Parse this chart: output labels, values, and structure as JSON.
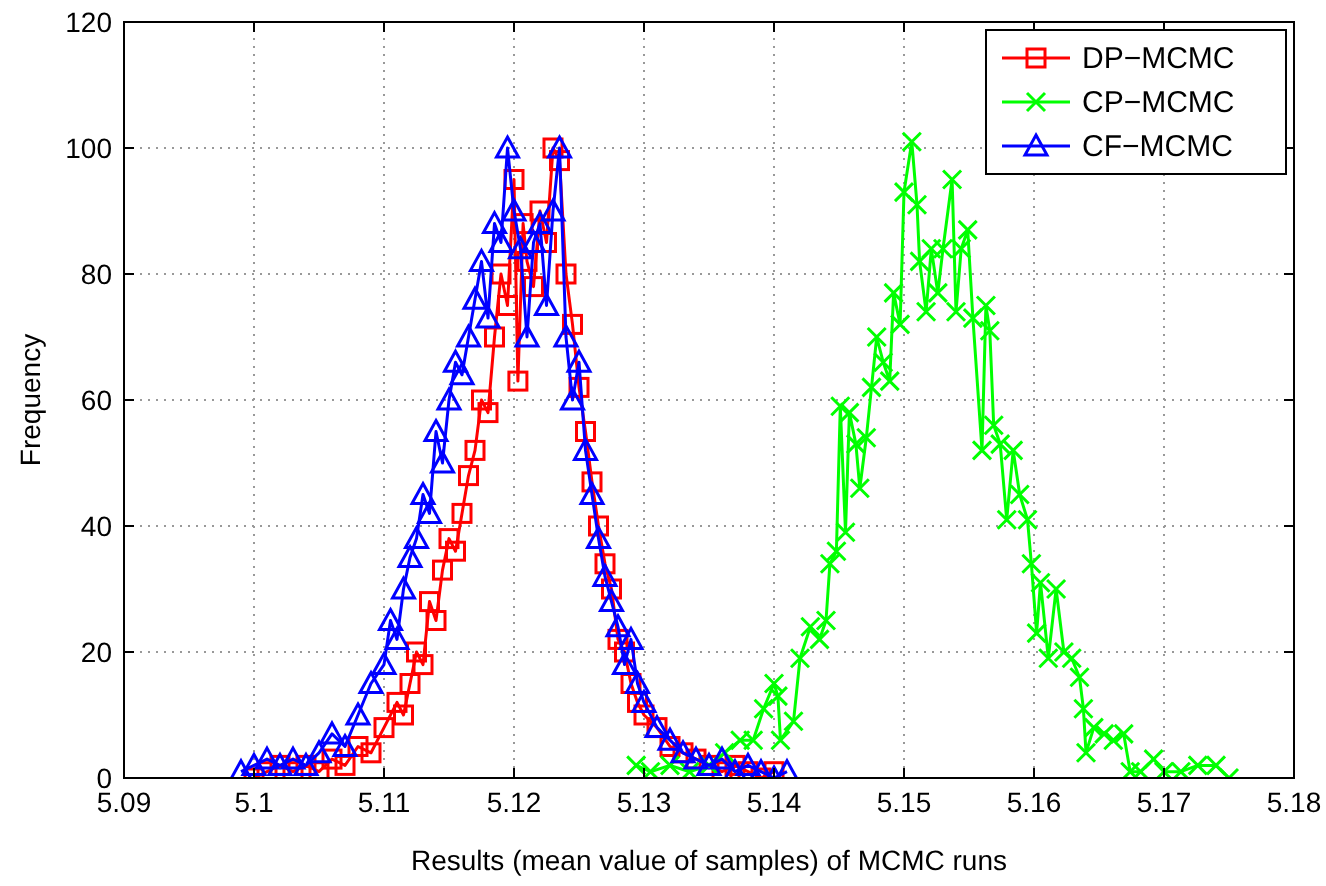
{
  "chart_data": {
    "type": "line",
    "xlabel": "Results (mean value of samples) of MCMC runs",
    "ylabel": "Frequency",
    "xlim": [
      5.09,
      5.18
    ],
    "xticks": [
      5.09,
      5.1,
      5.11,
      5.12,
      5.13,
      5.14,
      5.15,
      5.16,
      5.17,
      5.18
    ],
    "ylim": [
      0,
      120
    ],
    "yticks": [
      0,
      20,
      40,
      60,
      80,
      100,
      120
    ],
    "grid": true,
    "legend": "top right",
    "series": [
      {
        "name": "DP−MCMC",
        "color": "#ff0000",
        "marker": "square",
        "x": [
          5.1,
          5.101,
          5.102,
          5.103,
          5.104,
          5.105,
          5.106,
          5.107,
          5.108,
          5.109,
          5.11,
          5.111,
          5.1115,
          5.112,
          5.1125,
          5.113,
          5.1135,
          5.114,
          5.1145,
          5.115,
          5.1155,
          5.116,
          5.1165,
          5.117,
          5.1175,
          5.118,
          5.1185,
          5.119,
          5.1195,
          5.12,
          5.1203,
          5.1207,
          5.121,
          5.1215,
          5.122,
          5.1225,
          5.123,
          5.1235,
          5.124,
          5.1245,
          5.125,
          5.1255,
          5.126,
          5.1265,
          5.127,
          5.1275,
          5.128,
          5.1285,
          5.129,
          5.1295,
          5.13,
          5.131,
          5.132,
          5.133,
          5.134,
          5.135,
          5.136,
          5.137,
          5.138,
          5.139,
          5.14
        ],
        "values": [
          0,
          1,
          2,
          1,
          2,
          1,
          3,
          2,
          5,
          4,
          8,
          12,
          10,
          15,
          20,
          18,
          28,
          25,
          33,
          38,
          36,
          42,
          48,
          52,
          60,
          58,
          70,
          80,
          75,
          95,
          63,
          88,
          82,
          78,
          90,
          85,
          100,
          98,
          80,
          72,
          62,
          55,
          47,
          40,
          34,
          30,
          22,
          20,
          15,
          12,
          10,
          8,
          5,
          4,
          3,
          2,
          1,
          2,
          1,
          0,
          1
        ]
      },
      {
        "name": "CP−MCMC",
        "color": "#00ff00",
        "marker": "cross",
        "x": [
          5.1294,
          5.1305,
          5.132,
          5.1335,
          5.135,
          5.1362,
          5.1374,
          5.1384,
          5.1392,
          5.14,
          5.1403,
          5.1405,
          5.1415,
          5.142,
          5.1428,
          5.1435,
          5.144,
          5.1443,
          5.1448,
          5.1451,
          5.1455,
          5.1458,
          5.1463,
          5.1466,
          5.1471,
          5.1475,
          5.1479,
          5.1484,
          5.1489,
          5.1492,
          5.1497,
          5.15,
          5.1506,
          5.151,
          5.1512,
          5.1517,
          5.1521,
          5.1526,
          5.153,
          5.1537,
          5.154,
          5.1544,
          5.1549,
          5.1553,
          5.156,
          5.1563,
          5.1566,
          5.1569,
          5.1574,
          5.1579,
          5.1584,
          5.1589,
          5.1595,
          5.1598,
          5.1602,
          5.1605,
          5.1611,
          5.1617,
          5.1623,
          5.1629,
          5.1635,
          5.1638,
          5.164,
          5.1646,
          5.1654,
          5.1661,
          5.1669,
          5.1674,
          5.1682,
          5.1692,
          5.17,
          5.1713,
          5.1726,
          5.174,
          5.175
        ],
        "values": [
          2,
          1,
          2,
          1,
          2,
          4,
          6,
          6,
          11,
          15,
          13,
          6,
          9,
          19,
          24,
          22,
          25,
          34,
          36,
          59,
          39,
          58,
          53,
          46,
          54,
          62,
          70,
          66,
          63,
          77,
          72,
          93,
          101,
          91,
          82,
          74,
          84,
          77,
          84,
          95,
          74,
          84,
          87,
          73,
          52,
          75,
          71,
          56,
          53,
          41,
          52,
          45,
          41,
          34,
          23,
          31,
          19,
          30,
          20,
          19,
          16,
          11,
          4,
          8,
          7,
          6,
          7,
          1,
          1,
          3,
          1,
          1,
          2,
          2,
          0
        ]
      },
      {
        "name": "CF−MCMC",
        "color": "#0000ff",
        "marker": "triangle",
        "x": [
          5.099,
          5.1,
          5.101,
          5.102,
          5.103,
          5.104,
          5.105,
          5.106,
          5.107,
          5.108,
          5.109,
          5.11,
          5.1105,
          5.111,
          5.1115,
          5.112,
          5.1125,
          5.113,
          5.1135,
          5.114,
          5.1145,
          5.115,
          5.1155,
          5.116,
          5.1165,
          5.117,
          5.1175,
          5.118,
          5.1185,
          5.119,
          5.1195,
          5.12,
          5.1205,
          5.121,
          5.1215,
          5.122,
          5.1225,
          5.123,
          5.1235,
          5.124,
          5.1245,
          5.125,
          5.1255,
          5.126,
          5.1265,
          5.127,
          5.1275,
          5.128,
          5.1285,
          5.129,
          5.1295,
          5.13,
          5.131,
          5.132,
          5.133,
          5.134,
          5.135,
          5.136,
          5.137,
          5.138,
          5.139,
          5.14,
          5.141
        ],
        "values": [
          1,
          2,
          3,
          2,
          3,
          2,
          4,
          7,
          5,
          10,
          15,
          18,
          25,
          22,
          30,
          35,
          38,
          45,
          42,
          55,
          50,
          60,
          66,
          64,
          70,
          76,
          82,
          73,
          88,
          85,
          100,
          90,
          84,
          70,
          85,
          88,
          75,
          90,
          100,
          70,
          60,
          66,
          52,
          45,
          38,
          32,
          28,
          24,
          18,
          22,
          15,
          12,
          8,
          6,
          4,
          3,
          2,
          3,
          1,
          2,
          1,
          0,
          1
        ]
      }
    ]
  }
}
